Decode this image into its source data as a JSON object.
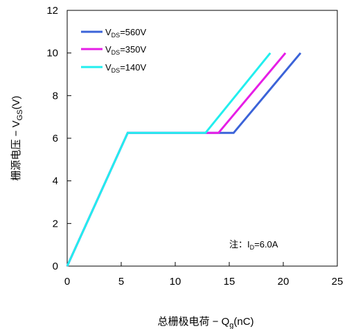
{
  "chart_data": {
    "type": "line",
    "xlabel_main": "总栅极电荷 − Q",
    "xlabel_sub": "g",
    "xlabel_tail": "(nC)",
    "ylabel_main": "栅源电压 − V",
    "ylabel_sub": "GS",
    "ylabel_tail": "(V)",
    "xlim": [
      0,
      25
    ],
    "ylim": [
      0,
      12
    ],
    "x_ticks": [
      "0",
      "5",
      "10",
      "15",
      "20",
      "25"
    ],
    "y_ticks": [
      "0",
      "2",
      "4",
      "6",
      "8",
      "10",
      "12"
    ],
    "legend_placement": "top-left",
    "annotation": {
      "prefix": "注：I",
      "sub": "D",
      "suffix": "=6.0A"
    },
    "series": [
      {
        "name_main": "V",
        "name_sub": "DS",
        "name_tail": "=560V",
        "color": "#3b63d8",
        "x": [
          0,
          5.6,
          15.4,
          21.6
        ],
        "y": [
          0,
          6.25,
          6.25,
          10.0
        ]
      },
      {
        "name_main": "V",
        "name_sub": "DS",
        "name_tail": "=350V",
        "color": "#e61ee6",
        "x": [
          0,
          5.6,
          14.0,
          20.2
        ],
        "y": [
          0,
          6.25,
          6.25,
          10.0
        ]
      },
      {
        "name_main": "V",
        "name_sub": "DS",
        "name_tail": "=140V",
        "color": "#22eeee",
        "x": [
          0,
          5.6,
          12.8,
          18.8
        ],
        "y": [
          0,
          6.25,
          6.25,
          10.0
        ]
      }
    ]
  }
}
